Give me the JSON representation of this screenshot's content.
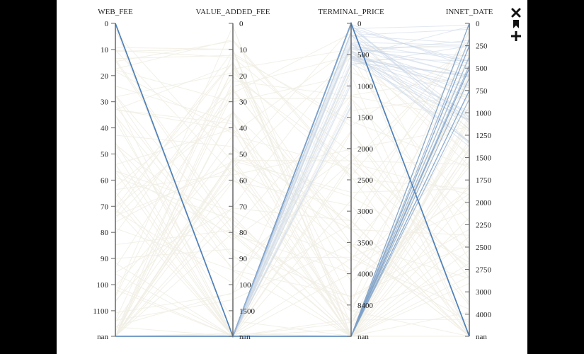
{
  "toolbar": {
    "icons": [
      "close-icon",
      "bookmark-icon",
      "plus-icon"
    ]
  },
  "colors": {
    "background": "#000000",
    "panel": "#ffffff",
    "axis": "#666666",
    "highlight": "#4f7fb8",
    "faint": "#f1eee4"
  },
  "chart_data": {
    "type": "parallel-coordinates",
    "axes": [
      {
        "name": "WEB_FEE",
        "ticks": [
          "0",
          "10",
          "20",
          "30",
          "40",
          "50",
          "60",
          "70",
          "80",
          "90",
          "100",
          "1100",
          "nan"
        ]
      },
      {
        "name": "VALUE_ADDED_FEE",
        "ticks": [
          "0",
          "10",
          "20",
          "30",
          "40",
          "50",
          "60",
          "70",
          "80",
          "90",
          "100",
          "1500",
          "nan"
        ]
      },
      {
        "name": "TERMINAL_PRICE",
        "ticks": [
          "0",
          "500",
          "1000",
          "1500",
          "2000",
          "2500",
          "3000",
          "3500",
          "4000",
          "8400",
          "nan"
        ]
      },
      {
        "name": "INNET_DATE",
        "ticks": [
          "0",
          "250",
          "500",
          "750",
          "1000",
          "1250",
          "1500",
          "1750",
          "2000",
          "2250",
          "2500",
          "2750",
          "3000",
          "4000",
          "nan"
        ]
      }
    ],
    "highlighted_lines": [
      {
        "values": [
          "0",
          "nan",
          "0",
          "nan"
        ]
      },
      {
        "values": [
          "0",
          "nan",
          "0",
          "nan"
        ]
      },
      {
        "values": [
          "nan",
          "nan",
          "nan",
          "0"
        ]
      },
      {
        "values": [
          "nan",
          "nan",
          "nan",
          "250"
        ]
      },
      {
        "values": [
          "nan",
          "nan",
          "nan",
          "500"
        ]
      },
      {
        "values": [
          "nan",
          "nan",
          "nan",
          "750"
        ]
      }
    ],
    "background_lines_note": "many faint polylines across all axes"
  }
}
